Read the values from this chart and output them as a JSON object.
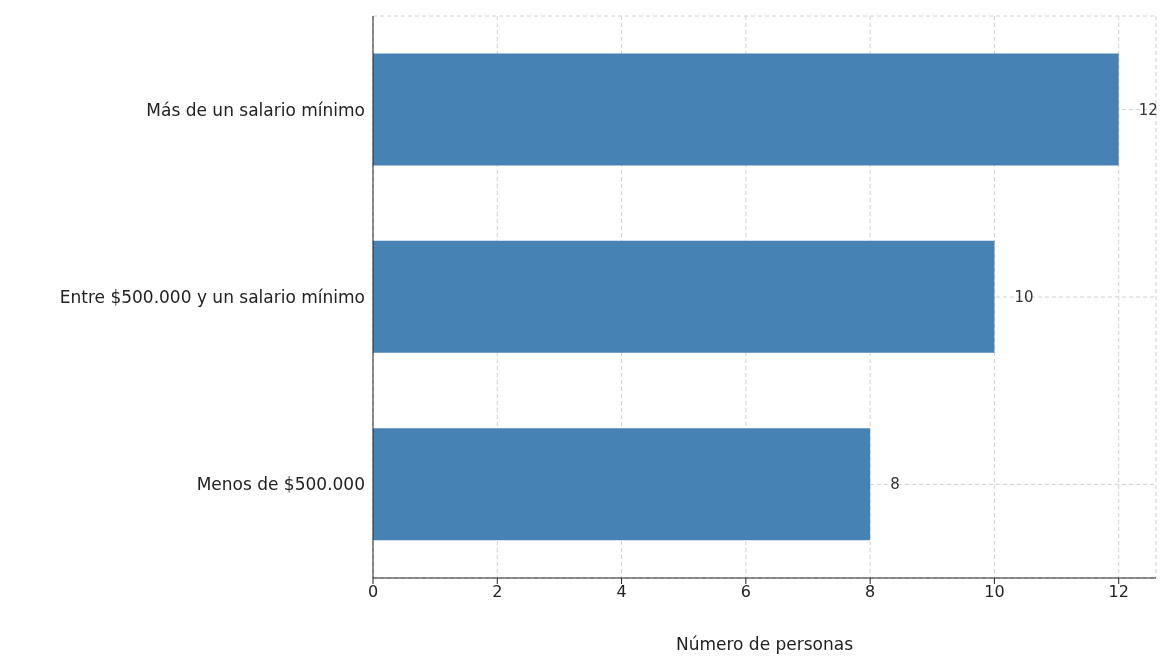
{
  "chart_data": {
    "type": "bar",
    "orientation": "horizontal",
    "xlabel": "Número de personas",
    "categories": [
      "Más de un salario mínimo",
      "Entre $500.000 y un salario mínimo",
      "Menos de $500.000"
    ],
    "values": [
      12,
      10,
      8
    ],
    "color": "#4682b4",
    "xlim": [
      0,
      12.6
    ],
    "xticks": [
      0,
      2,
      4,
      6,
      8,
      10,
      12
    ],
    "grid": true,
    "data_labels": true
  }
}
